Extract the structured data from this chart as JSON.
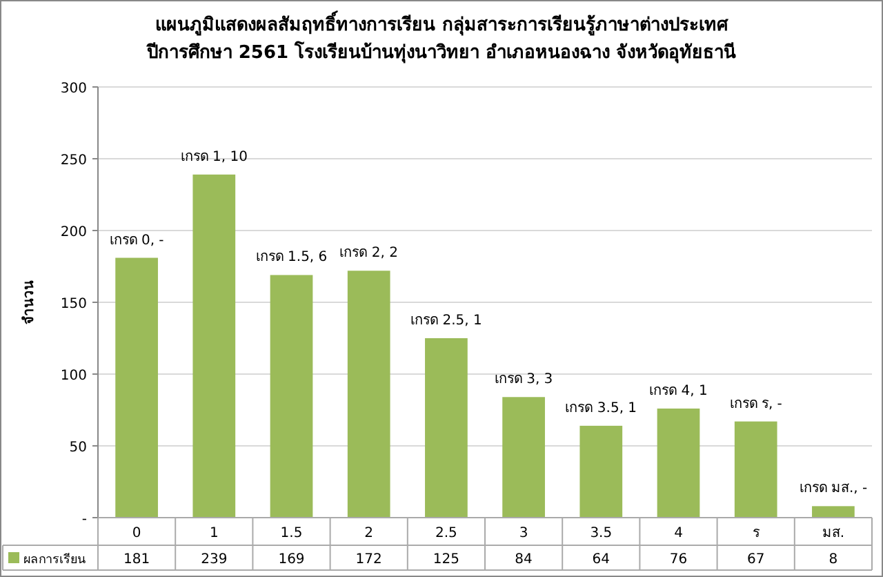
{
  "chart_data": {
    "type": "bar",
    "title": "แผนภูมิแสดงผลสัมฤทธิ์ทางการเรียน กลุ่มสาระการเรียนรู้ภาษาต่างประเทศ",
    "subtitle": "ปีการศึกษา 2561 โรงเรียนบ้านทุ่งนาวิทยา อำเภอหนองฉาง จังหวัดอุทัยธานี",
    "ylabel": "จำนวน",
    "categories": [
      "0",
      "1",
      "1.5",
      "2",
      "2.5",
      "3",
      "3.5",
      "4",
      "ร",
      "มส."
    ],
    "series": [
      {
        "name": "ผลการเรียน",
        "color": "#9bbb59",
        "values": [
          181,
          239,
          169,
          172,
          125,
          84,
          64,
          76,
          67,
          8
        ]
      }
    ],
    "ylim": [
      0,
      300
    ],
    "yticks": [
      {
        "value": 0,
        "label": "-"
      },
      50,
      100,
      150,
      200,
      250,
      300
    ],
    "grid": "y",
    "legend": "bottom",
    "data_labels": true,
    "annotations": [
      {
        "text": "เกรด 0,  -",
        "x": "0",
        "y": 181
      },
      {
        "text": "เกรด 1,  10",
        "x": "1",
        "y": 239
      },
      {
        "text": "เกรด 1.5,  6",
        "x": "1.5",
        "y": 169
      },
      {
        "text": "เกรด 2,  2",
        "x": "2",
        "y": 172
      },
      {
        "text": "เกรด 2.5,  1",
        "x": "2.5",
        "y": 125
      },
      {
        "text": "เกรด 3,  3",
        "x": "3",
        "y": 84
      },
      {
        "text": "เกรด 3.5,  1",
        "x": "3.5",
        "y": 64
      },
      {
        "text": "เกรด 4,  1",
        "x": "4",
        "y": 76
      },
      {
        "text": "เกรด ร,  -",
        "x": "ร",
        "y": 67
      },
      {
        "text": "เกรด มส.,  -",
        "x": "มส.",
        "y": 8
      }
    ]
  }
}
